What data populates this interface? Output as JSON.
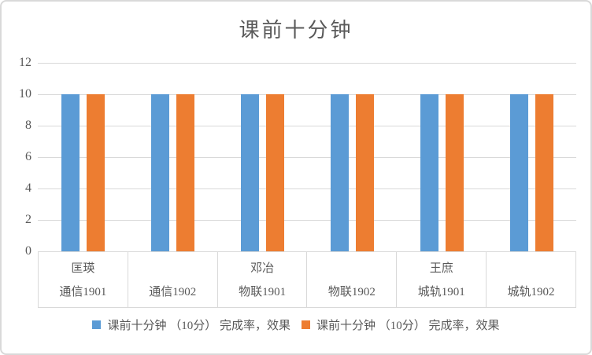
{
  "chart_data": {
    "type": "bar",
    "title": "课前十分钟",
    "categories": [
      {
        "person": "匡瑛",
        "class": "通信1901"
      },
      {
        "person": "",
        "class": "通信1902"
      },
      {
        "person": "邓冶",
        "class": "物联1901"
      },
      {
        "person": "",
        "class": "物联1902"
      },
      {
        "person": "王庶",
        "class": "城轨1901"
      },
      {
        "person": "",
        "class": "城轨1902"
      }
    ],
    "series": [
      {
        "name": "课前十分钟 （10分） 完成率，效果",
        "color": "#5B9BD5",
        "values": [
          10,
          10,
          10,
          10,
          10,
          10
        ]
      },
      {
        "name": "课前十分钟 （10分） 完成率，效果",
        "color": "#ED7D31",
        "values": [
          10,
          10,
          10,
          10,
          10,
          10
        ]
      }
    ],
    "xlabel": "",
    "ylabel": "",
    "ylim": [
      0,
      12
    ],
    "yticks": [
      0,
      2,
      4,
      6,
      8,
      10,
      12
    ],
    "grid": true,
    "legend_position": "bottom",
    "colors": {
      "grid": "#D9D9D9",
      "axis_text": "#595959",
      "title_text": "#595959",
      "frame_border": "#D9D9D9",
      "background": "#FFFFFF"
    }
  }
}
